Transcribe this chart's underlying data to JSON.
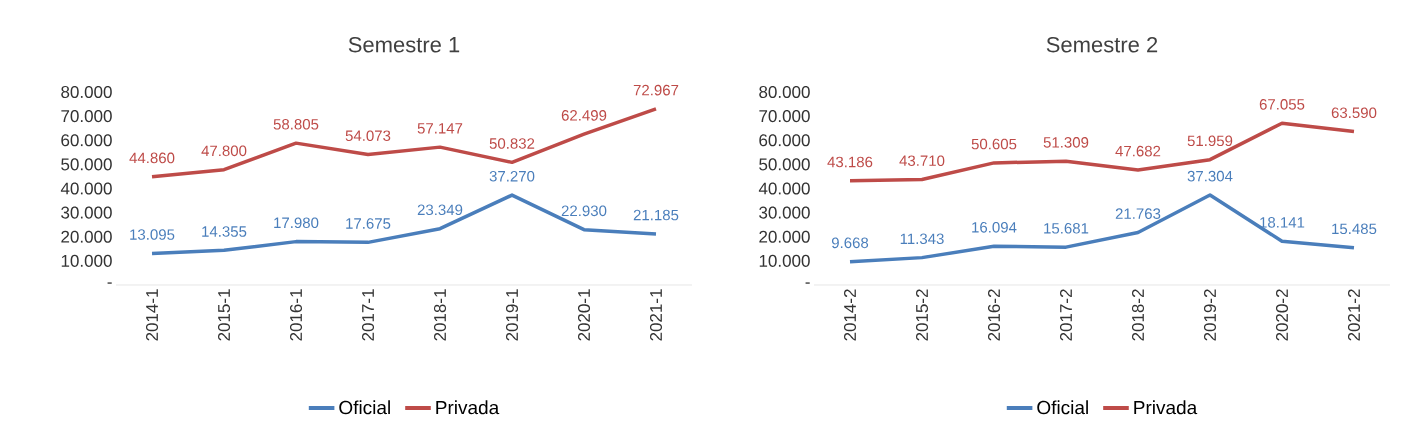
{
  "chart_data": [
    {
      "type": "line",
      "title": "Semestre 1",
      "categories": [
        "2014-1",
        "2015-1",
        "2016-1",
        "2017-1",
        "2018-1",
        "2019-1",
        "2020-1",
        "2021-1"
      ],
      "series": [
        {
          "name": "Oficial",
          "color": "#4a7ebb",
          "values": [
            13095,
            14355,
            17980,
            17675,
            23349,
            37270,
            22930,
            21185
          ],
          "value_labels": [
            "13.095",
            "14.355",
            "17.980",
            "17.675",
            "23.349",
            "37.270",
            "22.930",
            "21.185"
          ]
        },
        {
          "name": "Privada",
          "color": "#be4b48",
          "values": [
            44860,
            47800,
            58805,
            54073,
            57147,
            50832,
            62499,
            72967
          ],
          "value_labels": [
            "44.860",
            "47.800",
            "58.805",
            "54.073",
            "57.147",
            "50.832",
            "62.499",
            "72.967"
          ]
        }
      ],
      "ylim": [
        0,
        80000
      ],
      "yticks": [
        {
          "value": 0,
          "label": "-"
        },
        {
          "value": 10000,
          "label": "10.000"
        },
        {
          "value": 20000,
          "label": "20.000"
        },
        {
          "value": 30000,
          "label": "30.000"
        },
        {
          "value": 40000,
          "label": "40.000"
        },
        {
          "value": 50000,
          "label": "50.000"
        },
        {
          "value": 60000,
          "label": "60.000"
        },
        {
          "value": 70000,
          "label": "70.000"
        },
        {
          "value": 80000,
          "label": "80.000"
        }
      ],
      "legend": "bottom"
    },
    {
      "type": "line",
      "title": "Semestre 2",
      "categories": [
        "2014-2",
        "2015-2",
        "2016-2",
        "2017-2",
        "2018-2",
        "2019-2",
        "2020-2",
        "2021-2"
      ],
      "series": [
        {
          "name": "Oficial",
          "color": "#4a7ebb",
          "values": [
            9668,
            11343,
            16094,
            15681,
            21763,
            37304,
            18141,
            15485
          ],
          "value_labels": [
            "9.668",
            "11.343",
            "16.094",
            "15.681",
            "21.763",
            "37.304",
            "18.141",
            "15.485"
          ]
        },
        {
          "name": "Privada",
          "color": "#be4b48",
          "values": [
            43186,
            43710,
            50605,
            51309,
            47682,
            51959,
            67055,
            63590
          ],
          "value_labels": [
            "43.186",
            "43.710",
            "50.605",
            "51.309",
            "47.682",
            "51.959",
            "67.055",
            "63.590"
          ]
        }
      ],
      "ylim": [
        0,
        80000
      ],
      "yticks": [
        {
          "value": 0,
          "label": "-"
        },
        {
          "value": 10000,
          "label": "10.000"
        },
        {
          "value": 20000,
          "label": "20.000"
        },
        {
          "value": 30000,
          "label": "30.000"
        },
        {
          "value": 40000,
          "label": "40.000"
        },
        {
          "value": 50000,
          "label": "50.000"
        },
        {
          "value": 60000,
          "label": "60.000"
        },
        {
          "value": 70000,
          "label": "70.000"
        },
        {
          "value": 80000,
          "label": "80.000"
        }
      ],
      "legend": "bottom"
    }
  ]
}
